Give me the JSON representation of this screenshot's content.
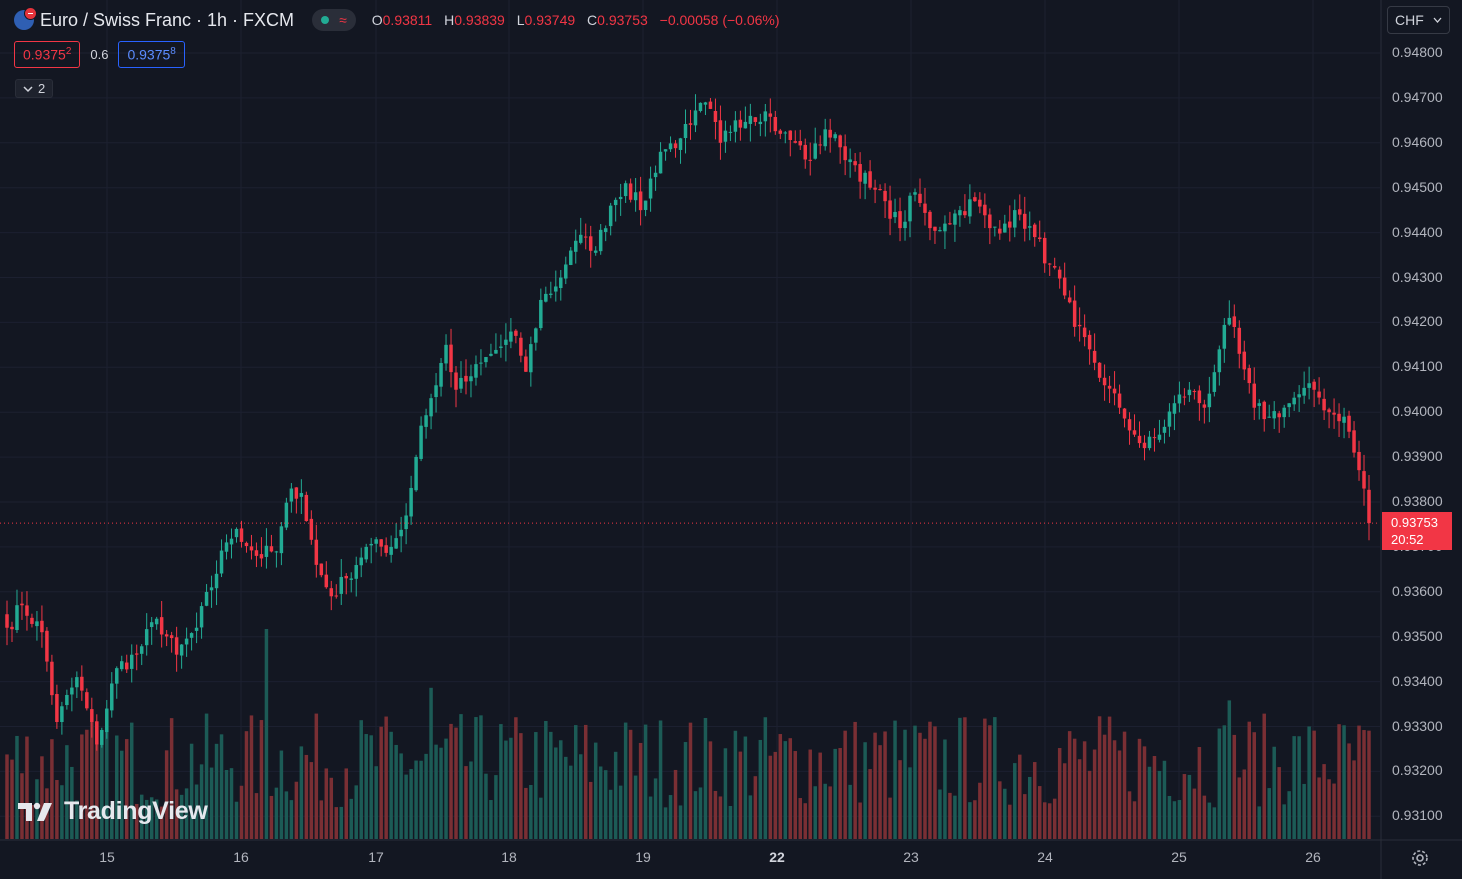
{
  "header": {
    "symbol_title": "Euro / Swiss Franc · 1h · FXCM",
    "open_key": "O",
    "open": "0.93811",
    "high_key": "H",
    "high": "0.93839",
    "low_key": "L",
    "low": "0.93749",
    "close_key": "C",
    "close": "0.93753",
    "change": "−0.00058 (−0.06%)",
    "status_icon": "market-open-dot",
    "delay_icon": "approx-wave-icon"
  },
  "quote": {
    "sell_main": "0.9375",
    "sell_pip": "2",
    "spread": "0.6",
    "buy_main": "0.9375",
    "buy_pip": "8"
  },
  "indicators": {
    "collapsed_count": "2"
  },
  "currency": {
    "label": "CHF"
  },
  "price_axis": {
    "labels": [
      "0.94800",
      "0.94700",
      "0.94600",
      "0.94500",
      "0.94400",
      "0.94300",
      "0.94200",
      "0.94100",
      "0.94000",
      "0.93900",
      "0.93800",
      "0.93700",
      "0.93600",
      "0.93500",
      "0.93400",
      "0.93300",
      "0.93200",
      "0.93100"
    ]
  },
  "time_axis": {
    "labels": [
      "15",
      "16",
      "17",
      "18",
      "19",
      "22",
      "23",
      "24",
      "25",
      "26"
    ]
  },
  "last_price": {
    "value": "0.93753",
    "countdown": "20:52"
  },
  "branding": {
    "name": "TradingView"
  },
  "colors": {
    "up": "#22ab94",
    "down": "#f23645",
    "background": "#131722",
    "grid": "#1c2030"
  },
  "chart_data": {
    "type": "candlestick",
    "interval": "1h",
    "ylim": [
      0.9307,
      0.9486
    ],
    "last_close": 0.93753,
    "x_ticks": [
      "15",
      "16",
      "17",
      "18",
      "19",
      "22",
      "23",
      "24",
      "25",
      "26"
    ],
    "close_path_anchors": [
      [
        0,
        0.9352
      ],
      [
        3,
        0.9357
      ],
      [
        7,
        0.9351
      ],
      [
        10,
        0.9331
      ],
      [
        14,
        0.9341
      ],
      [
        18,
        0.9326
      ],
      [
        22,
        0.9343
      ],
      [
        26,
        0.9346
      ],
      [
        30,
        0.9354
      ],
      [
        34,
        0.9346
      ],
      [
        38,
        0.9352
      ],
      [
        44,
        0.9371
      ],
      [
        46,
        0.9374
      ],
      [
        50,
        0.9368
      ],
      [
        54,
        0.9369
      ],
      [
        57,
        0.9383
      ],
      [
        59,
        0.9382
      ],
      [
        62,
        0.9366
      ],
      [
        65,
        0.9359
      ],
      [
        68,
        0.9363
      ],
      [
        72,
        0.937
      ],
      [
        77,
        0.937
      ],
      [
        80,
        0.9377
      ],
      [
        83,
        0.9397
      ],
      [
        86,
        0.9406
      ],
      [
        88,
        0.9415
      ],
      [
        90,
        0.9405
      ],
      [
        93,
        0.9408
      ],
      [
        97,
        0.9413
      ],
      [
        102,
        0.9417
      ],
      [
        104,
        0.9409
      ],
      [
        107,
        0.9425
      ],
      [
        110,
        0.9428
      ],
      [
        113,
        0.9436
      ],
      [
        116,
        0.9439
      ],
      [
        118,
        0.9436
      ],
      [
        121,
        0.9446
      ],
      [
        124,
        0.9451
      ],
      [
        127,
        0.9445
      ],
      [
        131,
        0.9458
      ],
      [
        135,
        0.9461
      ],
      [
        137,
        0.9464
      ],
      [
        140,
        0.9469
      ],
      [
        143,
        0.946
      ],
      [
        146,
        0.9465
      ],
      [
        149,
        0.9466
      ],
      [
        152,
        0.9467
      ],
      [
        155,
        0.9462
      ],
      [
        158,
        0.946
      ],
      [
        161,
        0.9456
      ],
      [
        164,
        0.9463
      ],
      [
        167,
        0.9459
      ],
      [
        170,
        0.9455
      ],
      [
        173,
        0.945
      ],
      [
        176,
        0.9447
      ],
      [
        179,
        0.9441
      ],
      [
        182,
        0.9449
      ],
      [
        185,
        0.9441
      ],
      [
        188,
        0.9442
      ],
      [
        191,
        0.9445
      ],
      [
        194,
        0.9447
      ],
      [
        197,
        0.9441
      ],
      [
        200,
        0.9442
      ],
      [
        203,
        0.9444
      ],
      [
        206,
        0.9439
      ],
      [
        209,
        0.9433
      ],
      [
        212,
        0.9426
      ],
      [
        214,
        0.9419
      ],
      [
        217,
        0.9414
      ],
      [
        220,
        0.9406
      ],
      [
        223,
        0.9401
      ],
      [
        226,
        0.9395
      ],
      [
        228,
        0.9392
      ],
      [
        231,
        0.9395
      ],
      [
        234,
        0.9402
      ],
      [
        237,
        0.9405
      ],
      [
        240,
        0.9401
      ],
      [
        243,
        0.9414
      ],
      [
        245,
        0.9421
      ],
      [
        247,
        0.9413
      ],
      [
        250,
        0.9401
      ],
      [
        253,
        0.9399
      ],
      [
        256,
        0.9401
      ],
      [
        259,
        0.9404
      ],
      [
        262,
        0.9405
      ],
      [
        265,
        0.94
      ],
      [
        268,
        0.9399
      ],
      [
        270,
        0.9391
      ],
      [
        272,
        0.9383
      ],
      [
        273,
        0.93753
      ]
    ],
    "volume_spikes": [
      {
        "bar": 52,
        "relative": 1.0
      },
      {
        "bar": 85,
        "relative": 0.72
      },
      {
        "bar": 245,
        "relative": 0.66
      }
    ]
  }
}
